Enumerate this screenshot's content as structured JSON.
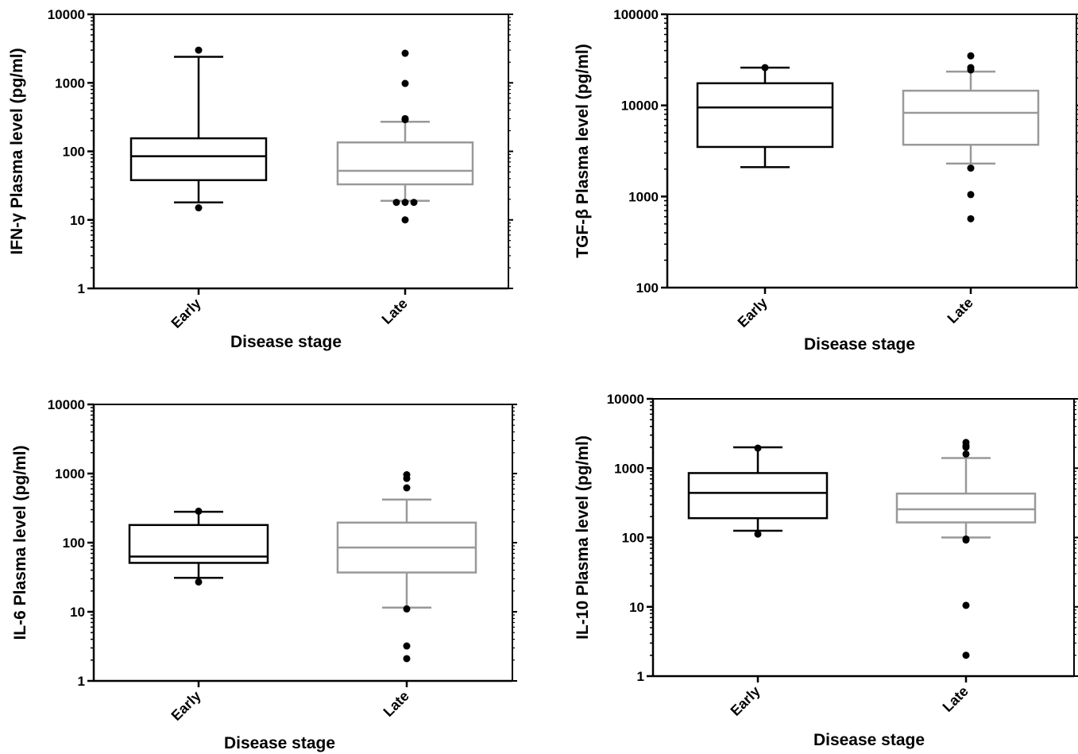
{
  "chart_data": [
    {
      "type": "box",
      "ylabel": "IFN-γ Plasma level (pg/ml)",
      "xlabel": "Disease stage",
      "yscale": "log",
      "ylim": [
        1,
        10000
      ],
      "yticks": [
        "1",
        "10",
        "100",
        "1000",
        "10000"
      ],
      "categories": [
        "Early",
        "Late"
      ],
      "boxes": [
        {
          "category": "Early",
          "color": "#000000",
          "whisker_low": 18,
          "q1": 38,
          "median": 85,
          "q3": 155,
          "whisker_high": 2400,
          "outliers": [
            15,
            3000
          ]
        },
        {
          "category": "Late",
          "color": "#999999",
          "whisker_low": 19,
          "q1": 33,
          "median": 52,
          "q3": 135,
          "whisker_high": 270,
          "outliers": [
            10,
            18,
            18,
            18,
            290,
            300,
            980,
            2700
          ]
        }
      ]
    },
    {
      "type": "box",
      "ylabel": "TGF-β Plasma level (pg/ml)",
      "xlabel": "Disease stage",
      "yscale": "log",
      "ylim": [
        100,
        100000
      ],
      "yticks": [
        "100",
        "1000",
        "10000",
        "100000"
      ],
      "categories": [
        "Early",
        "Late"
      ],
      "boxes": [
        {
          "category": "Early",
          "color": "#000000",
          "whisker_low": 2100,
          "q1": 3500,
          "median": 9500,
          "q3": 17500,
          "whisker_high": 26000,
          "outliers": [
            26000
          ]
        },
        {
          "category": "Late",
          "color": "#999999",
          "whisker_low": 2300,
          "q1": 3700,
          "median": 8300,
          "q3": 14500,
          "whisker_high": 23500,
          "outliers": [
            570,
            1050,
            2050,
            24500,
            26000,
            35000
          ]
        }
      ]
    },
    {
      "type": "box",
      "ylabel": "IL-6 Plasma level (pg/ml)",
      "xlabel": "Disease stage",
      "yscale": "log",
      "ylim": [
        1,
        10000
      ],
      "yticks": [
        "1",
        "10",
        "100",
        "1000",
        "10000"
      ],
      "categories": [
        "Early",
        "Late"
      ],
      "boxes": [
        {
          "category": "Early",
          "color": "#000000",
          "whisker_low": 31,
          "q1": 51,
          "median": 63,
          "q3": 180,
          "whisker_high": 280,
          "outliers": [
            27,
            285
          ]
        },
        {
          "category": "Late",
          "color": "#999999",
          "whisker_low": 11.5,
          "q1": 37,
          "median": 85,
          "q3": 195,
          "whisker_high": 420,
          "outliers": [
            2.1,
            3.2,
            11,
            620,
            850,
            960
          ]
        }
      ]
    },
    {
      "type": "box",
      "ylabel": "IL-10 Plasma level (pg/ml)",
      "xlabel": "Disease stage",
      "yscale": "log",
      "ylim": [
        1,
        10000
      ],
      "yticks": [
        "1",
        "10",
        "100",
        "1000",
        "10000"
      ],
      "categories": [
        "Early",
        "Late"
      ],
      "boxes": [
        {
          "category": "Early",
          "color": "#000000",
          "whisker_low": 125,
          "q1": 190,
          "median": 440,
          "q3": 850,
          "whisker_high": 2000,
          "outliers": [
            112,
            1950
          ]
        },
        {
          "category": "Late",
          "color": "#999999",
          "whisker_low": 100,
          "q1": 165,
          "median": 255,
          "q3": 430,
          "whisker_high": 1400,
          "outliers": [
            2,
            10.5,
            92,
            95,
            1600,
            2000,
            2100,
            2350
          ]
        }
      ]
    }
  ]
}
